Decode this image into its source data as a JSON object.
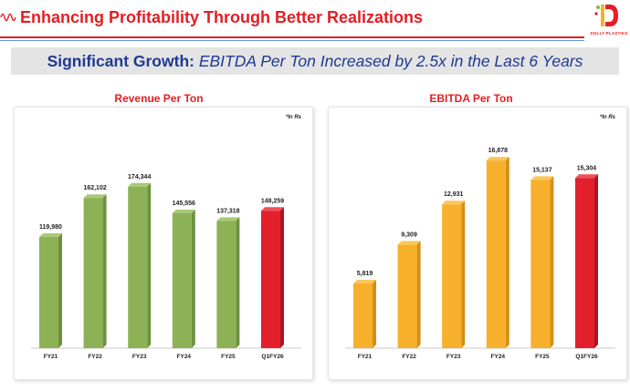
{
  "header": {
    "title": "Enhancing Profitability Through Better Realizations",
    "logo_text": "DOLLY PLASTIKS"
  },
  "banner": {
    "bold_part": "Significant Growth:",
    "italic_part": " EBITDA Per Ton Increased by 2.5x in the Last 6 Years"
  },
  "colors": {
    "accent_red": "#e31e24",
    "navy": "#1f3a93",
    "green_bar": "#8db255",
    "orange_bar": "#f6b02c",
    "red_bar": "#e2202c"
  },
  "chart_data": [
    {
      "type": "bar",
      "title": "Revenue Per Ton",
      "note": "*In Rs",
      "categories": [
        "FY21",
        "FY22",
        "FY23",
        "FY24",
        "FY25",
        "Q1FY26"
      ],
      "values": [
        119980,
        162102,
        174344,
        145556,
        137318,
        148259
      ],
      "value_labels": [
        "119,980",
        "162,102",
        "174,344",
        "145,556",
        "137,318",
        "148,259"
      ],
      "bar_colors": [
        "green",
        "green",
        "green",
        "green",
        "green",
        "red"
      ],
      "xlabel": "",
      "ylabel": "",
      "ylim": [
        0,
        240000
      ],
      "grid": false,
      "legend": "none"
    },
    {
      "type": "bar",
      "title": "EBITDA Per Ton",
      "note": "*In Rs",
      "categories": [
        "FY21",
        "FY22",
        "FY23",
        "FY24",
        "FY25",
        "Q1FY26"
      ],
      "values": [
        5819,
        9309,
        12931,
        16878,
        15137,
        15304
      ],
      "value_labels": [
        "5,819",
        "9,309",
        "12,931",
        "16,878",
        "15,137",
        "15,304"
      ],
      "bar_colors": [
        "orange",
        "orange",
        "orange",
        "orange",
        "orange",
        "red"
      ],
      "xlabel": "",
      "ylabel": "",
      "ylim": [
        0,
        20000
      ],
      "grid": false,
      "legend": "none"
    }
  ]
}
